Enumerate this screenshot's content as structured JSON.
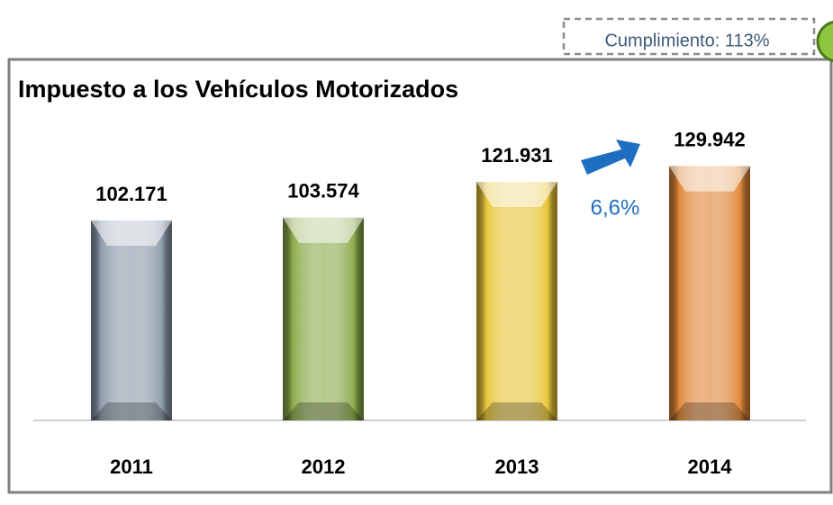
{
  "chart_data": {
    "type": "bar",
    "title": "Impuesto a los Vehículos Motorizados",
    "categories": [
      "2011",
      "2012",
      "2013",
      "2014"
    ],
    "values": [
      102171,
      103574,
      121931,
      129942
    ],
    "value_labels": [
      "102.171",
      "103.574",
      "121.931",
      "129.942"
    ],
    "colors": [
      "#8d9cab",
      "#8cab4c",
      "#e8c63c",
      "#e0883a"
    ],
    "ylim": [
      0,
      150000
    ],
    "annotations": {
      "compliance": "Cumplimiento: 113%",
      "growth": "6,6%"
    }
  }
}
